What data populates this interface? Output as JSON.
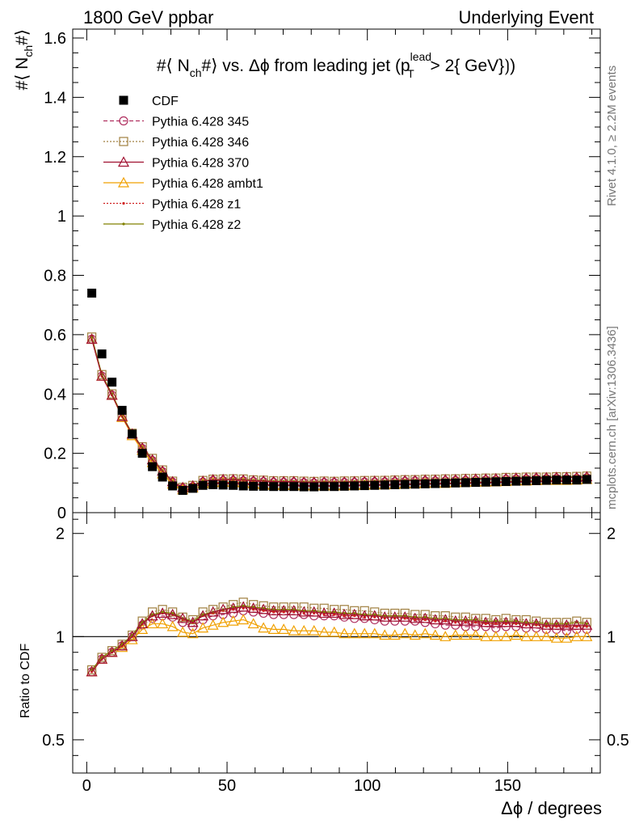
{
  "header": {
    "left": "1800 GeV ppbar",
    "right": "Underlying Event"
  },
  "title": {
    "prefix": "#⟨ N",
    "sub": "ch",
    "after_sub": "#⟩ vs. Δϕ from leading jet (p",
    "sup_lead": "lead",
    "sub_T": "T",
    "suffix": " > 2{ GeV}⟯)"
  },
  "side_labels": {
    "rivet": "Rivet 4.1.0, ≥ 2.2M events",
    "mcplots": "mcplots.cern.ch [arXiv:1306.3436]"
  },
  "axes": {
    "ylabel_main": "#⟨ N",
    "ylabel_main_sub": "ch",
    "ylabel_main_end": "#⟩",
    "ylabel_ratio": "Ratio to CDF",
    "xlabel": "Δϕ / degrees",
    "main_yticks": [
      "0",
      "0.2",
      "0.4",
      "0.6",
      "0.8",
      "1",
      "1.2",
      "1.4",
      "1.6"
    ],
    "ratio_yticks": [
      "0.5",
      "1",
      "2"
    ],
    "xticks": [
      "0",
      "50",
      "100",
      "150"
    ]
  },
  "chart_data": {
    "type": "scatter",
    "title": "#⟨ N_ch#⟩ vs. Δϕ from leading jet (p_T^lead > 2{ GeV})",
    "xlabel": "Δϕ / degrees",
    "ylabel": "#⟨ N_ch#⟩",
    "xlim": [
      -5,
      183
    ],
    "ylim": [
      0,
      1.63
    ],
    "ratio_ylim": [
      0.4,
      2.3
    ],
    "ratio_scale": "log",
    "x": [
      1.8,
      5.4,
      9.0,
      12.6,
      16.2,
      19.8,
      23.4,
      27.0,
      30.6,
      34.2,
      37.8,
      41.4,
      45.0,
      48.6,
      52.2,
      55.8,
      59.4,
      63.0,
      66.6,
      70.2,
      73.8,
      77.4,
      81.0,
      84.6,
      88.2,
      91.8,
      95.4,
      99.0,
      102.6,
      106.2,
      109.8,
      113.4,
      117.0,
      120.6,
      124.2,
      127.8,
      131.4,
      135.0,
      138.6,
      142.2,
      145.8,
      149.4,
      153.0,
      156.6,
      160.2,
      163.8,
      167.4,
      171.0,
      174.6,
      178.2
    ],
    "series": [
      {
        "name": "CDF",
        "style": "data",
        "color": "#000000",
        "values": [
          0.74,
          0.535,
          0.44,
          0.345,
          0.265,
          0.2,
          0.155,
          0.12,
          0.09,
          0.075,
          0.082,
          0.092,
          0.094,
          0.093,
          0.092,
          0.09,
          0.089,
          0.089,
          0.088,
          0.088,
          0.088,
          0.087,
          0.087,
          0.088,
          0.088,
          0.089,
          0.09,
          0.091,
          0.092,
          0.093,
          0.094,
          0.095,
          0.096,
          0.097,
          0.098,
          0.099,
          0.1,
          0.101,
          0.102,
          0.103,
          0.104,
          0.105,
          0.106,
          0.107,
          0.108,
          0.109,
          0.11,
          0.11,
          0.11,
          0.112
        ]
      },
      {
        "name": "Pythia 6.428 345",
        "style": "circle-dash",
        "color": "#b03060",
        "ratio": [
          0.79,
          0.86,
          0.9,
          0.94,
          1.0,
          1.08,
          1.13,
          1.15,
          1.14,
          1.1,
          1.07,
          1.12,
          1.15,
          1.16,
          1.17,
          1.19,
          1.18,
          1.17,
          1.16,
          1.16,
          1.16,
          1.16,
          1.15,
          1.15,
          1.15,
          1.14,
          1.13,
          1.13,
          1.12,
          1.11,
          1.11,
          1.11,
          1.11,
          1.1,
          1.09,
          1.08,
          1.08,
          1.07,
          1.07,
          1.07,
          1.06,
          1.07,
          1.07,
          1.06,
          1.06,
          1.05,
          1.05,
          1.04,
          1.05,
          1.05
        ]
      },
      {
        "name": "Pythia 6.428 346",
        "style": "square-dot",
        "color": "#a08040",
        "ratio": [
          0.8,
          0.87,
          0.91,
          0.95,
          1.01,
          1.11,
          1.18,
          1.2,
          1.18,
          1.14,
          1.12,
          1.18,
          1.2,
          1.22,
          1.24,
          1.26,
          1.24,
          1.23,
          1.22,
          1.22,
          1.22,
          1.22,
          1.21,
          1.21,
          1.2,
          1.2,
          1.19,
          1.19,
          1.18,
          1.17,
          1.17,
          1.17,
          1.16,
          1.16,
          1.15,
          1.15,
          1.14,
          1.14,
          1.13,
          1.13,
          1.12,
          1.13,
          1.12,
          1.12,
          1.11,
          1.1,
          1.1,
          1.1,
          1.11,
          1.1
        ]
      },
      {
        "name": "Pythia 6.428 370",
        "style": "triangle-solid",
        "color": "#a01030",
        "ratio": [
          0.79,
          0.86,
          0.9,
          0.94,
          1.0,
          1.09,
          1.15,
          1.17,
          1.16,
          1.13,
          1.1,
          1.15,
          1.18,
          1.2,
          1.21,
          1.22,
          1.21,
          1.2,
          1.19,
          1.19,
          1.19,
          1.18,
          1.18,
          1.17,
          1.17,
          1.16,
          1.16,
          1.15,
          1.15,
          1.14,
          1.14,
          1.14,
          1.13,
          1.13,
          1.12,
          1.12,
          1.11,
          1.11,
          1.11,
          1.1,
          1.1,
          1.1,
          1.1,
          1.09,
          1.09,
          1.08,
          1.08,
          1.08,
          1.08,
          1.08
        ]
      },
      {
        "name": "Pythia 6.428 ambt1",
        "style": "triangle-orange",
        "color": "#f0a000",
        "ratio": [
          0.79,
          0.86,
          0.9,
          0.93,
          0.98,
          1.05,
          1.09,
          1.09,
          1.07,
          1.03,
          1.02,
          1.06,
          1.08,
          1.1,
          1.11,
          1.12,
          1.09,
          1.06,
          1.05,
          1.05,
          1.04,
          1.04,
          1.04,
          1.03,
          1.03,
          1.02,
          1.02,
          1.02,
          1.02,
          1.01,
          1.01,
          1.02,
          1.01,
          1.02,
          1.01,
          1.0,
          1.01,
          1.01,
          1.01,
          1.0,
          1.0,
          1.0,
          1.01,
          1.0,
          1.0,
          1.0,
          0.99,
          0.99,
          1.0,
          1.0
        ]
      },
      {
        "name": "Pythia 6.428 z1",
        "style": "dot-dotted",
        "color": "#d02020",
        "ratio": [
          0.79,
          0.86,
          0.9,
          0.94,
          1.0,
          1.09,
          1.15,
          1.17,
          1.16,
          1.12,
          1.1,
          1.15,
          1.17,
          1.19,
          1.2,
          1.21,
          1.2,
          1.19,
          1.18,
          1.18,
          1.18,
          1.17,
          1.17,
          1.16,
          1.16,
          1.15,
          1.15,
          1.14,
          1.14,
          1.13,
          1.13,
          1.13,
          1.12,
          1.12,
          1.11,
          1.11,
          1.1,
          1.1,
          1.1,
          1.09,
          1.09,
          1.09,
          1.09,
          1.08,
          1.08,
          1.07,
          1.07,
          1.07,
          1.07,
          1.07
        ]
      },
      {
        "name": "Pythia 6.428 z2",
        "style": "dot-solid",
        "color": "#808000",
        "ratio": [
          0.8,
          0.87,
          0.91,
          0.95,
          1.01,
          1.1,
          1.16,
          1.18,
          1.17,
          1.13,
          1.11,
          1.16,
          1.18,
          1.2,
          1.22,
          1.23,
          1.22,
          1.21,
          1.2,
          1.2,
          1.2,
          1.19,
          1.19,
          1.18,
          1.18,
          1.17,
          1.17,
          1.16,
          1.16,
          1.15,
          1.15,
          1.15,
          1.14,
          1.14,
          1.13,
          1.13,
          1.12,
          1.12,
          1.12,
          1.11,
          1.11,
          1.11,
          1.11,
          1.1,
          1.1,
          1.09,
          1.09,
          1.09,
          1.1,
          1.09
        ]
      }
    ]
  }
}
